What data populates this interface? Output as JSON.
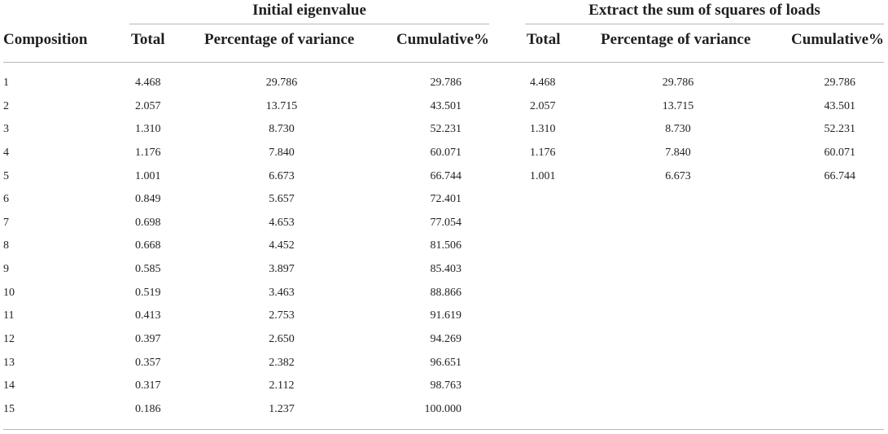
{
  "table": {
    "group_headers": [
      "Initial eigenvalue",
      "Extract the sum of squares of loads"
    ],
    "columns": [
      "Composition",
      "Total",
      "Percentage of variance",
      "Cumulative%",
      "Total",
      "Percentage of variance",
      "Cumulative%"
    ],
    "rows": [
      [
        "1",
        "4.468",
        "29.786",
        "29.786",
        "4.468",
        "29.786",
        "29.786"
      ],
      [
        "2",
        "2.057",
        "13.715",
        "43.501",
        "2.057",
        "13.715",
        "43.501"
      ],
      [
        "3",
        "1.310",
        "8.730",
        "52.231",
        "1.310",
        "8.730",
        "52.231"
      ],
      [
        "4",
        "1.176",
        "7.840",
        "60.071",
        "1.176",
        "7.840",
        "60.071"
      ],
      [
        "5",
        "1.001",
        "6.673",
        "66.744",
        "1.001",
        "6.673",
        "66.744"
      ],
      [
        "6",
        "0.849",
        "5.657",
        "72.401",
        "",
        "",
        ""
      ],
      [
        "7",
        "0.698",
        "4.653",
        "77.054",
        "",
        "",
        ""
      ],
      [
        "8",
        "0.668",
        "4.452",
        "81.506",
        "",
        "",
        ""
      ],
      [
        "9",
        "0.585",
        "3.897",
        "85.403",
        "",
        "",
        ""
      ],
      [
        "10",
        "0.519",
        "3.463",
        "88.866",
        "",
        "",
        ""
      ],
      [
        "11",
        "0.413",
        "2.753",
        "91.619",
        "",
        "",
        ""
      ],
      [
        "12",
        "0.397",
        "2.650",
        "94.269",
        "",
        "",
        ""
      ],
      [
        "13",
        "0.357",
        "2.382",
        "96.651",
        "",
        "",
        ""
      ],
      [
        "14",
        "0.317",
        "2.112",
        "98.763",
        "",
        "",
        ""
      ],
      [
        "15",
        "0.186",
        "1.237",
        "100.000",
        "",
        "",
        ""
      ]
    ]
  }
}
